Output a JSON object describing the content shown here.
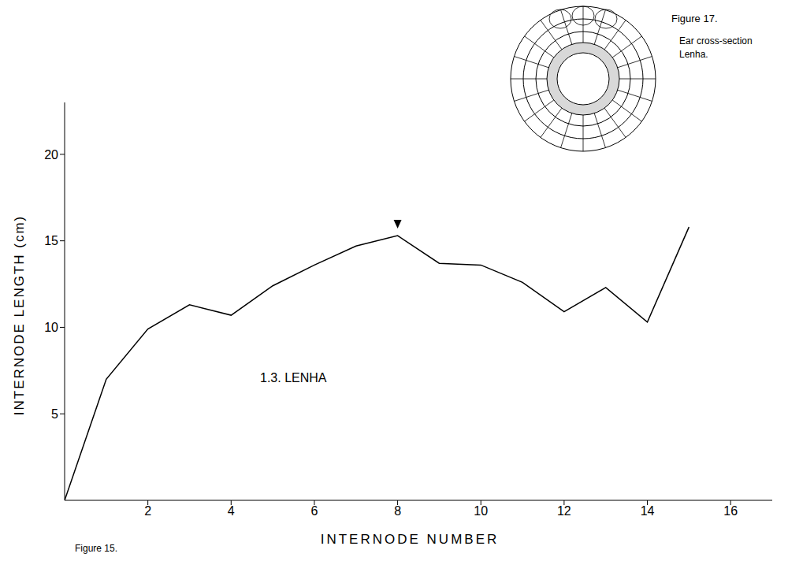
{
  "chart_data": {
    "type": "line",
    "title": "1.3. LENHA",
    "caption": "Figure 15.",
    "x_label": "INTERNODE NUMBER",
    "y_label": "INTERNODE LENGTH (cm)",
    "x": [
      0,
      1,
      2,
      3,
      4,
      5,
      6,
      7,
      8,
      9,
      10,
      11,
      12,
      13,
      14,
      15
    ],
    "values": [
      0,
      7,
      9.9,
      11.3,
      10.7,
      12.4,
      13.6,
      14.7,
      15.3,
      13.7,
      13.6,
      12.6,
      10.9,
      12.3,
      10.3,
      15.8
    ],
    "color": "#000000",
    "xlim": [
      0,
      17
    ],
    "ylim": [
      0,
      23
    ],
    "xticks": [
      2,
      4,
      6,
      8,
      10,
      12,
      14,
      16
    ],
    "yticks": [
      5,
      10,
      15,
      20
    ],
    "grid": false,
    "ear_internode": 8
  },
  "figure_17": {
    "caption": "Figure 17.",
    "text": [
      "Ear cross-section",
      "Lenha."
    ]
  }
}
